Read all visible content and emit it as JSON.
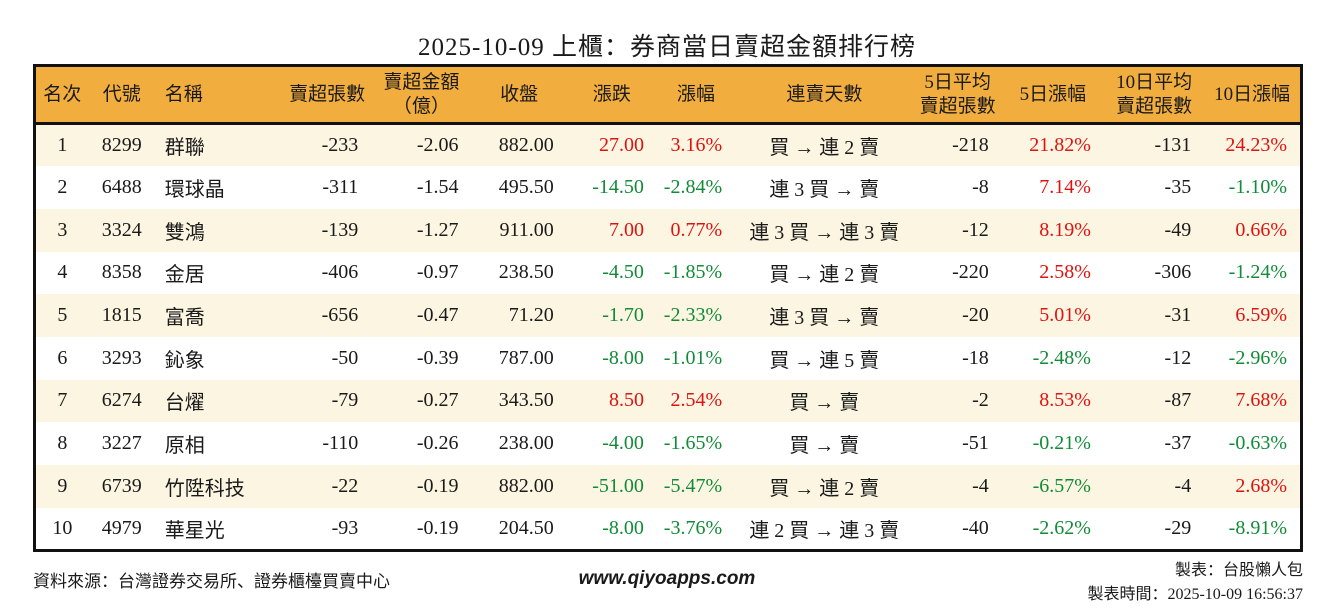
{
  "page_title": "2025-10-09 上櫃：券商當日賣超金額排行榜",
  "colors": {
    "header_bg": "#F1AD3D",
    "row_alt_bg": "#FCF5E2",
    "up_red": "#DE1310",
    "down_green": "#128B38",
    "border": "#111111"
  },
  "chart_data": {
    "type": "table",
    "title": "2025-10-09 上櫃：券商當日賣超金額排行榜",
    "columns": [
      {
        "key": "rank",
        "label": "名次",
        "align": "center"
      },
      {
        "key": "code",
        "label": "代號",
        "align": "center"
      },
      {
        "key": "name",
        "label": "名稱",
        "align": "left"
      },
      {
        "key": "sell_volume",
        "label": "賣超張數",
        "align": "right"
      },
      {
        "key": "sell_amount",
        "label": "賣超金額\n（億）",
        "align": "right"
      },
      {
        "key": "close",
        "label": "收盤",
        "align": "right"
      },
      {
        "key": "change",
        "label": "漲跌",
        "align": "right",
        "color_from": "change"
      },
      {
        "key": "change_pct",
        "label": "漲幅",
        "align": "right",
        "color_from": "change"
      },
      {
        "key": "streak",
        "label": "連賣天數",
        "align": "center"
      },
      {
        "key": "avg5",
        "label": "5日平均\n賣超張數",
        "align": "right"
      },
      {
        "key": "pct5",
        "label": "5日漲幅",
        "align": "right",
        "color_from": "pct5"
      },
      {
        "key": "avg10",
        "label": "10日平均\n賣超張數",
        "align": "right"
      },
      {
        "key": "pct10",
        "label": "10日漲幅",
        "align": "right",
        "color_from": "pct10"
      }
    ],
    "rows": [
      {
        "rank": "1",
        "code": "8299",
        "name": "群聯",
        "sell_volume": "-233",
        "sell_amount": "-2.06",
        "close": "882.00",
        "change": "27.00",
        "change_pct": "3.16%",
        "streak": "買 → 連 2 賣",
        "avg5": "-218",
        "pct5": "21.82%",
        "avg10": "-131",
        "pct10": "24.23%",
        "colors": {
          "change": "red",
          "pct5": "red",
          "pct10": "red"
        }
      },
      {
        "rank": "2",
        "code": "6488",
        "name": "環球晶",
        "sell_volume": "-311",
        "sell_amount": "-1.54",
        "close": "495.50",
        "change": "-14.50",
        "change_pct": "-2.84%",
        "streak": "連 3 買 → 賣",
        "avg5": "-8",
        "pct5": "7.14%",
        "avg10": "-35",
        "pct10": "-1.10%",
        "colors": {
          "change": "green",
          "pct5": "red",
          "pct10": "green"
        }
      },
      {
        "rank": "3",
        "code": "3324",
        "name": "雙鴻",
        "sell_volume": "-139",
        "sell_amount": "-1.27",
        "close": "911.00",
        "change": "7.00",
        "change_pct": "0.77%",
        "streak": "連 3 買 → 連 3 賣",
        "avg5": "-12",
        "pct5": "8.19%",
        "avg10": "-49",
        "pct10": "0.66%",
        "colors": {
          "change": "red",
          "pct5": "red",
          "pct10": "red"
        }
      },
      {
        "rank": "4",
        "code": "8358",
        "name": "金居",
        "sell_volume": "-406",
        "sell_amount": "-0.97",
        "close": "238.50",
        "change": "-4.50",
        "change_pct": "-1.85%",
        "streak": "買 → 連 2 賣",
        "avg5": "-220",
        "pct5": "2.58%",
        "avg10": "-306",
        "pct10": "-1.24%",
        "colors": {
          "change": "green",
          "pct5": "red",
          "pct10": "green"
        }
      },
      {
        "rank": "5",
        "code": "1815",
        "name": "富喬",
        "sell_volume": "-656",
        "sell_amount": "-0.47",
        "close": "71.20",
        "change": "-1.70",
        "change_pct": "-2.33%",
        "streak": "連 3 買 → 賣",
        "avg5": "-20",
        "pct5": "5.01%",
        "avg10": "-31",
        "pct10": "6.59%",
        "colors": {
          "change": "green",
          "pct5": "red",
          "pct10": "red"
        }
      },
      {
        "rank": "6",
        "code": "3293",
        "name": "鈊象",
        "sell_volume": "-50",
        "sell_amount": "-0.39",
        "close": "787.00",
        "change": "-8.00",
        "change_pct": "-1.01%",
        "streak": "買 → 連 5 賣",
        "avg5": "-18",
        "pct5": "-2.48%",
        "avg10": "-12",
        "pct10": "-2.96%",
        "colors": {
          "change": "green",
          "pct5": "green",
          "pct10": "green"
        }
      },
      {
        "rank": "7",
        "code": "6274",
        "name": "台燿",
        "sell_volume": "-79",
        "sell_amount": "-0.27",
        "close": "343.50",
        "change": "8.50",
        "change_pct": "2.54%",
        "streak": "買 → 賣",
        "avg5": "-2",
        "pct5": "8.53%",
        "avg10": "-87",
        "pct10": "7.68%",
        "colors": {
          "change": "red",
          "pct5": "red",
          "pct10": "red"
        }
      },
      {
        "rank": "8",
        "code": "3227",
        "name": "原相",
        "sell_volume": "-110",
        "sell_amount": "-0.26",
        "close": "238.00",
        "change": "-4.00",
        "change_pct": "-1.65%",
        "streak": "買 → 賣",
        "avg5": "-51",
        "pct5": "-0.21%",
        "avg10": "-37",
        "pct10": "-0.63%",
        "colors": {
          "change": "green",
          "pct5": "green",
          "pct10": "green"
        }
      },
      {
        "rank": "9",
        "code": "6739",
        "name": "竹陞科技",
        "sell_volume": "-22",
        "sell_amount": "-0.19",
        "close": "882.00",
        "change": "-51.00",
        "change_pct": "-5.47%",
        "streak": "買 → 連 2 賣",
        "avg5": "-4",
        "pct5": "-6.57%",
        "avg10": "-4",
        "pct10": "2.68%",
        "colors": {
          "change": "green",
          "pct5": "green",
          "pct10": "red"
        }
      },
      {
        "rank": "10",
        "code": "4979",
        "name": "華星光",
        "sell_volume": "-93",
        "sell_amount": "-0.19",
        "close": "204.50",
        "change": "-8.00",
        "change_pct": "-3.76%",
        "streak": "連 2 買 → 連 3 賣",
        "avg5": "-40",
        "pct5": "-2.62%",
        "avg10": "-29",
        "pct10": "-8.91%",
        "colors": {
          "change": "green",
          "pct5": "green",
          "pct10": "green"
        }
      }
    ]
  },
  "footer": {
    "source": "資料來源：台灣證券交易所、證券櫃檯買賣中心",
    "website": "www.qiyoapps.com",
    "maker": "製表：台股懶人包",
    "generated": "製表時間：2025-10-09 16:56:37"
  }
}
